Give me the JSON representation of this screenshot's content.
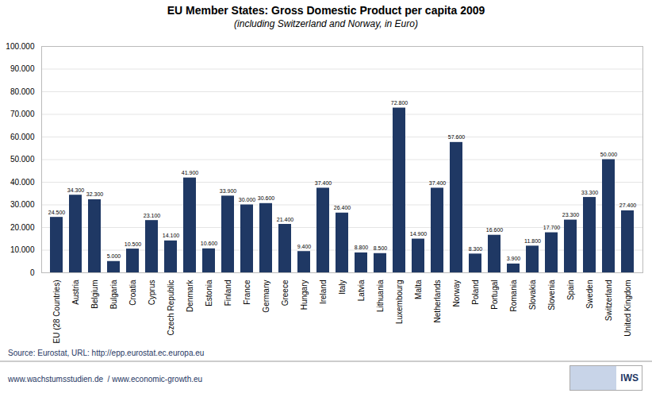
{
  "chart_data": {
    "type": "bar",
    "title": "EU Member States: Gross Domestic Product per capita 2009",
    "subtitle": "(including Switzerland and Norway, in Euro)",
    "categories": [
      "EU (28 Countries)",
      "Austria",
      "Belgium",
      "Bulgaria",
      "Croatia",
      "Cyprus",
      "Czech Republic",
      "Denmark",
      "Estonia",
      "Finland",
      "France",
      "Germany",
      "Greece",
      "Hungary",
      "Ireland",
      "Italy",
      "Latvia",
      "Lithuania",
      "Luxembourg",
      "Malta",
      "Netherlands",
      "Norway",
      "Poland",
      "Portugal",
      "Romania",
      "Slovakia",
      "Slovenia",
      "Spain",
      "Sweden",
      "Switzerland",
      "United Kingdom"
    ],
    "values": [
      24500,
      34300,
      32300,
      5000,
      10500,
      23100,
      14100,
      41900,
      10600,
      33900,
      30000,
      30600,
      21400,
      9400,
      37400,
      26400,
      8800,
      8500,
      72800,
      14900,
      37400,
      57600,
      8300,
      16600,
      3900,
      11800,
      17700,
      23300,
      33300,
      50000,
      27400
    ],
    "value_labels": [
      "24.500",
      "34.300",
      "32.300",
      "5.000",
      "10.500",
      "23.100",
      "14.100",
      "41.900",
      "10.600",
      "33.900",
      "30.000",
      "30.600",
      "21.400",
      "9.400",
      "37.400",
      "26.400",
      "8.800",
      "8.500",
      "72.800",
      "14.900",
      "37.400",
      "57.600",
      "8.300",
      "16.600",
      "3.900",
      "11.800",
      "17.700",
      "23.300",
      "33.300",
      "50.000",
      "27.400"
    ],
    "data_labels": true,
    "color": "#1F3864",
    "ylim": [
      0,
      100000
    ],
    "yticks": [
      0,
      {
        "value": 10000,
        "label": "10.000"
      },
      {
        "value": 20000,
        "label": "20.000"
      },
      {
        "value": 30000,
        "label": "30.000"
      },
      {
        "value": 40000,
        "label": "40.000"
      },
      {
        "value": 50000,
        "label": "50.000"
      },
      {
        "value": 60000,
        "label": "60.000"
      },
      {
        "value": 70000,
        "label": "70.000"
      },
      {
        "value": 80000,
        "label": "80.000"
      },
      {
        "value": 90000,
        "label": "90.000"
      },
      {
        "value": 100000,
        "label": "100.000"
      }
    ],
    "grid": true,
    "annotations": [
      "Source: Eurostat, URL: http://epp.eurostat.ec.europa.eu",
      "www.wachstumsstudien.de  / www.economic-growth.eu",
      "IWS"
    ]
  }
}
